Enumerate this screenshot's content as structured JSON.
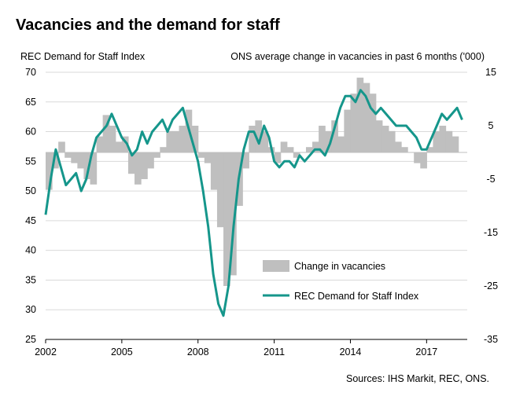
{
  "chart_data": {
    "type": "bar+line",
    "title": "Vacancies and the demand for staff",
    "left_axis": {
      "label": "REC Demand for Staff Index",
      "range": [
        25,
        70
      ],
      "ticks": [
        25,
        30,
        35,
        40,
        45,
        50,
        55,
        60,
        65,
        70
      ]
    },
    "right_axis": {
      "label": "ONS average change in vacancies in past 6 months ('000)",
      "range": [
        -35,
        15
      ],
      "ticks": [
        -35,
        -25,
        -15,
        -5,
        5,
        15
      ]
    },
    "x_axis": {
      "range": [
        2002,
        2018.6
      ],
      "ticks": [
        2002,
        2005,
        2008,
        2011,
        2014,
        2017
      ],
      "tick_labels": [
        "2002",
        "2005",
        "2008",
        "2011",
        "2014",
        "2017"
      ]
    },
    "grid": true,
    "legend": {
      "placement": "bottom-center"
    },
    "series": [
      {
        "name": "Change in vacancies",
        "type": "bar",
        "axis": "right",
        "color": "#bfbfbf",
        "x": [
          2002.0,
          2002.25,
          2002.5,
          2002.75,
          2003.0,
          2003.25,
          2003.5,
          2003.75,
          2004.0,
          2004.25,
          2004.5,
          2004.75,
          2005.0,
          2005.25,
          2005.5,
          2005.75,
          2006.0,
          2006.25,
          2006.5,
          2006.75,
          2007.0,
          2007.25,
          2007.5,
          2007.75,
          2008.0,
          2008.25,
          2008.5,
          2008.75,
          2009.0,
          2009.25,
          2009.5,
          2009.75,
          2010.0,
          2010.25,
          2010.5,
          2010.75,
          2011.0,
          2011.25,
          2011.5,
          2011.75,
          2012.0,
          2012.25,
          2012.5,
          2012.75,
          2013.0,
          2013.25,
          2013.5,
          2013.75,
          2014.0,
          2014.25,
          2014.5,
          2014.75,
          2015.0,
          2015.25,
          2015.5,
          2015.75,
          2016.0,
          2016.25,
          2016.5,
          2016.75,
          2017.0,
          2017.25,
          2017.5,
          2017.75,
          2018.0,
          2018.25
        ],
        "values": [
          -7,
          -3,
          2,
          -1,
          -2,
          -3,
          -5,
          -6,
          3,
          7,
          5,
          2,
          3,
          -4,
          -6,
          -5,
          -3,
          -1,
          1,
          4,
          4,
          5,
          8,
          5,
          -1,
          -2,
          -7,
          -14,
          -25,
          -23,
          -10,
          -3,
          5,
          6,
          4,
          1,
          -2,
          2,
          1,
          -1,
          0,
          1,
          2,
          5,
          4,
          6,
          3,
          8,
          11,
          14,
          13,
          11,
          6,
          5,
          4,
          2,
          1,
          0,
          -2,
          -3,
          1,
          4,
          5,
          4,
          3,
          0
        ]
      },
      {
        "name": "REC Demand for Staff Index",
        "type": "line",
        "axis": "left",
        "color": "#15968b",
        "x": [
          2002.0,
          2002.2,
          2002.4,
          2002.6,
          2002.8,
          2003.0,
          2003.2,
          2003.4,
          2003.6,
          2003.8,
          2004.0,
          2004.2,
          2004.4,
          2004.6,
          2004.8,
          2005.0,
          2005.2,
          2005.4,
          2005.6,
          2005.8,
          2006.0,
          2006.2,
          2006.4,
          2006.6,
          2006.8,
          2007.0,
          2007.2,
          2007.4,
          2007.6,
          2007.8,
          2008.0,
          2008.2,
          2008.4,
          2008.6,
          2008.8,
          2009.0,
          2009.2,
          2009.4,
          2009.6,
          2009.8,
          2010.0,
          2010.2,
          2010.4,
          2010.6,
          2010.8,
          2011.0,
          2011.2,
          2011.4,
          2011.6,
          2011.8,
          2012.0,
          2012.2,
          2012.4,
          2012.6,
          2012.8,
          2013.0,
          2013.2,
          2013.4,
          2013.6,
          2013.8,
          2014.0,
          2014.2,
          2014.4,
          2014.6,
          2014.8,
          2015.0,
          2015.2,
          2015.4,
          2015.6,
          2015.8,
          2016.0,
          2016.2,
          2016.4,
          2016.6,
          2016.8,
          2017.0,
          2017.2,
          2017.4,
          2017.6,
          2017.8,
          2018.0,
          2018.2,
          2018.4
        ],
        "values": [
          46,
          52,
          57,
          54,
          51,
          52,
          53,
          50,
          52,
          56,
          59,
          60,
          61,
          63,
          61,
          59,
          58,
          56,
          57,
          60,
          58,
          60,
          61,
          62,
          60,
          62,
          63,
          64,
          61,
          58,
          55,
          50,
          44,
          36,
          31,
          29,
          34,
          44,
          52,
          57,
          60,
          60,
          58,
          61,
          59,
          55,
          54,
          55,
          55,
          54,
          56,
          55,
          56,
          57,
          57,
          56,
          58,
          61,
          64,
          66,
          66,
          65,
          67,
          66,
          64,
          63,
          64,
          63,
          62,
          61,
          61,
          61,
          60,
          59,
          57,
          57,
          59,
          61,
          63,
          62,
          63,
          64,
          62
        ]
      }
    ],
    "source": "Sources: IHS Markit, REC, ONS."
  }
}
